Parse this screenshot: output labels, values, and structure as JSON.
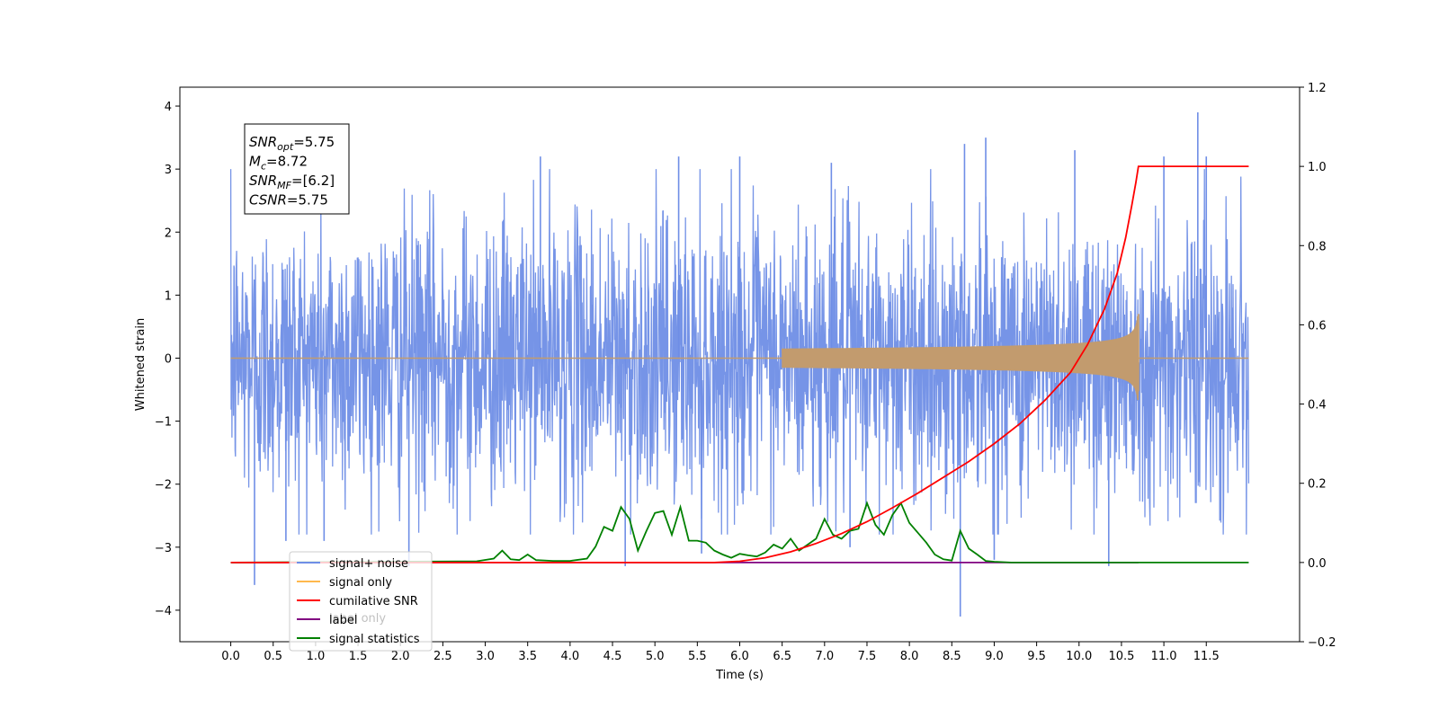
{
  "chart_data": {
    "type": "line",
    "xlabel": "Time (s)",
    "ylabel": "Whitened strain",
    "xlim": [
      -0.6,
      12.6
    ],
    "ylim": [
      -4.5,
      4.3
    ],
    "y2lim": [
      -0.2,
      1.2
    ],
    "x_ticks": [
      0.0,
      0.5,
      1.0,
      1.5,
      2.0,
      2.5,
      3.0,
      3.5,
      4.0,
      4.5,
      5.0,
      5.5,
      6.0,
      6.5,
      7.0,
      7.5,
      8.0,
      8.5,
      9.0,
      9.5,
      10.0,
      10.5,
      11.0,
      11.5
    ],
    "x_tick_labels": [
      "0.0",
      "0.5",
      "1.0",
      "1.5",
      "2.0",
      "2.5",
      "3.0",
      "3.5",
      "4.0",
      "4.5",
      "5.0",
      "5.5",
      "6.0",
      "6.5",
      "7.0",
      "7.5",
      "8.0",
      "8.5",
      "9.0",
      "9.5",
      "10.0",
      "10.5",
      "11.0",
      "11.5"
    ],
    "y_ticks": [
      -4,
      -3,
      -2,
      -1,
      0,
      1,
      2,
      3,
      4
    ],
    "y_tick_labels": [
      "−4",
      "−3",
      "−2",
      "−1",
      "0",
      "1",
      "2",
      "3",
      "4"
    ],
    "y2_ticks": [
      -0.2,
      0.0,
      0.2,
      0.4,
      0.6,
      0.8,
      1.0,
      1.2
    ],
    "y2_tick_labels": [
      "−0.2",
      "0.0",
      "0.2",
      "0.4",
      "0.6",
      "0.8",
      "1.0",
      "1.2"
    ],
    "annotation_lines": [
      {
        "sym": "SNR",
        "sub": "opt",
        "val": "=5.75"
      },
      {
        "sym": "M",
        "sub": "c",
        "val": "=8.72"
      },
      {
        "sym": "SNR",
        "sub": "MF",
        "val": "=[6.2]"
      },
      {
        "sym": "CSNR",
        "sub": "",
        "val": "=5.75"
      }
    ],
    "legend": {
      "placement": "lower-left",
      "entries": [
        {
          "label": "signal+ noise",
          "color": "#6f8ee6"
        },
        {
          "label": "signal only",
          "color": "#ffb84d"
        },
        {
          "label": "cumilative SNR",
          "color": "#ff0000"
        },
        {
          "label": "label",
          "color": "#800080"
        },
        {
          "label": "signal statistics",
          "color": "#008000"
        }
      ],
      "hidden_label": "label only"
    },
    "series": [
      {
        "name": "signal+ noise",
        "axis": "left",
        "color": "#6f8ee6",
        "x_range": [
          0.0,
          12.0
        ],
        "envelope_typical": 1.8,
        "spikes": [
          [
            0.28,
            -3.6
          ],
          [
            0.65,
            -2.9
          ],
          [
            1.1,
            -2.9
          ],
          [
            2.1,
            -3.3
          ],
          [
            3.65,
            3.2
          ],
          [
            4.65,
            -3.3
          ],
          [
            5.28,
            3.2
          ],
          [
            5.55,
            -3.1
          ],
          [
            6.0,
            3.2
          ],
          [
            7.08,
            3.1
          ],
          [
            7.3,
            -3.0
          ],
          [
            8.6,
            -4.1
          ],
          [
            8.65,
            3.4
          ],
          [
            8.9,
            3.5
          ],
          [
            9.0,
            -3.2
          ],
          [
            9.95,
            3.3
          ],
          [
            10.35,
            -3.3
          ],
          [
            11.4,
            3.9
          ],
          [
            11.5,
            3.2
          ],
          [
            11.0,
            3.2
          ]
        ]
      },
      {
        "name": "signal only",
        "axis": "left",
        "color": "#c29b6e",
        "x_range": [
          0.0,
          12.0
        ],
        "chirp_start": 6.5,
        "merger_time": 10.7,
        "peak_amplitude": 0.7
      },
      {
        "name": "cumilative SNR",
        "axis": "right",
        "color": "#ff0000",
        "x": [
          0.0,
          5.7,
          6.0,
          6.3,
          6.6,
          6.9,
          7.2,
          7.5,
          7.8,
          8.1,
          8.4,
          8.7,
          9.0,
          9.3,
          9.6,
          9.9,
          10.1,
          10.3,
          10.45,
          10.55,
          10.62,
          10.67,
          10.7,
          12.0
        ],
        "values": [
          0.0,
          0.0,
          0.003,
          0.012,
          0.027,
          0.048,
          0.073,
          0.103,
          0.138,
          0.175,
          0.215,
          0.255,
          0.3,
          0.35,
          0.41,
          0.48,
          0.55,
          0.64,
          0.73,
          0.82,
          0.9,
          0.96,
          1.0,
          1.0
        ]
      },
      {
        "name": "label",
        "axis": "right",
        "color": "#800080",
        "x": [
          0.0,
          10.7
        ],
        "values": [
          0.0,
          0.0
        ]
      },
      {
        "name": "signal statistics",
        "axis": "right",
        "color": "#008000",
        "x": [
          0.0,
          2.9,
          3.1,
          3.2,
          3.3,
          3.4,
          3.5,
          3.6,
          3.8,
          4.0,
          4.2,
          4.3,
          4.4,
          4.5,
          4.6,
          4.7,
          4.8,
          4.9,
          5.0,
          5.1,
          5.2,
          5.3,
          5.4,
          5.5,
          5.6,
          5.7,
          5.8,
          5.9,
          6.0,
          6.1,
          6.2,
          6.3,
          6.4,
          6.5,
          6.6,
          6.7,
          6.8,
          6.9,
          7.0,
          7.1,
          7.2,
          7.3,
          7.4,
          7.5,
          7.6,
          7.7,
          7.8,
          7.9,
          8.0,
          8.1,
          8.2,
          8.3,
          8.4,
          8.5,
          8.6,
          8.7,
          8.8,
          8.9,
          9.0,
          9.2,
          9.5,
          9.8,
          10.0,
          12.0
        ],
        "values": [
          0.0,
          0.003,
          0.01,
          0.03,
          0.008,
          0.006,
          0.02,
          0.006,
          0.004,
          0.004,
          0.01,
          0.04,
          0.09,
          0.08,
          0.14,
          0.11,
          0.03,
          0.08,
          0.125,
          0.13,
          0.07,
          0.14,
          0.055,
          0.055,
          0.05,
          0.03,
          0.02,
          0.012,
          0.022,
          0.018,
          0.015,
          0.025,
          0.045,
          0.035,
          0.06,
          0.03,
          0.045,
          0.06,
          0.11,
          0.07,
          0.06,
          0.08,
          0.085,
          0.15,
          0.095,
          0.07,
          0.12,
          0.15,
          0.1,
          0.075,
          0.05,
          0.02,
          0.008,
          0.005,
          0.08,
          0.035,
          0.02,
          0.004,
          0.002,
          0.0,
          0.0,
          0.0,
          0.0,
          0.0
        ]
      }
    ]
  }
}
